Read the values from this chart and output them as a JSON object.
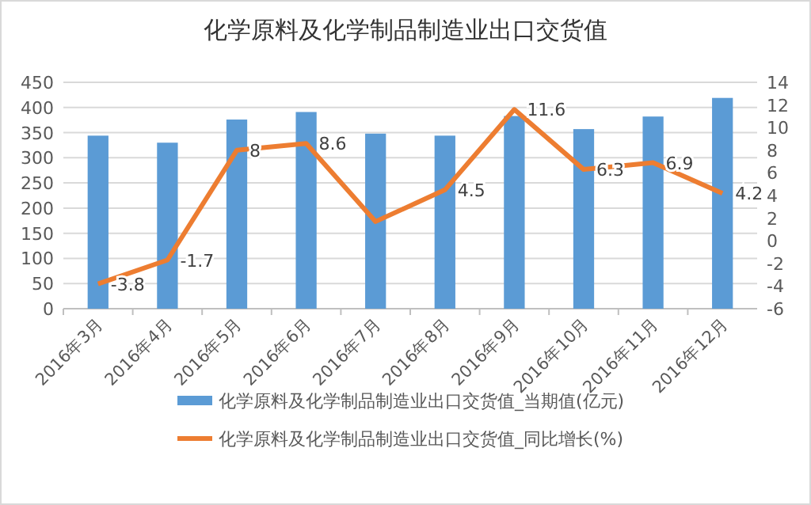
{
  "chart_data": {
    "type": "bar",
    "title": "化学原料及化学制品制造业出口交货值",
    "categories": [
      "2016年3月",
      "2016年4月",
      "2016年5月",
      "2016年6月",
      "2016年7月",
      "2016年8月",
      "2016年9月",
      "2016年10月",
      "2016年11月",
      "2016年12月"
    ],
    "series": [
      {
        "name": "化学原料及化学制品制造业出口交货值_当期值(亿元)",
        "color": "#5b9bd5",
        "values": [
          344,
          330,
          376,
          391,
          348,
          344,
          383,
          357,
          382,
          419
        ]
      },
      {
        "name": "化学原料及化学制品制造业出口交货值_同比增长(%)",
        "type": "line",
        "axis": "y2",
        "color": "#ed7d31",
        "values": [
          -3.8,
          -1.7,
          8,
          8.6,
          1.7,
          4.5,
          11.6,
          6.3,
          6.9,
          4.2
        ],
        "value_labels": [
          "-3.8",
          "-1.7",
          "8",
          "8.6",
          null,
          "4.5",
          "11.6",
          "6.3",
          "6.9",
          "4.2"
        ]
      }
    ],
    "ylim": [
      0,
      450
    ],
    "yticks": [
      0,
      50,
      100,
      150,
      200,
      250,
      300,
      350,
      400,
      450
    ],
    "y2lim": [
      -6,
      14
    ],
    "y2ticks": [
      -6,
      -4,
      -2,
      0,
      2,
      4,
      6,
      8,
      10,
      12,
      14
    ],
    "grid": "y",
    "legend": "bottom",
    "marker": "none"
  }
}
